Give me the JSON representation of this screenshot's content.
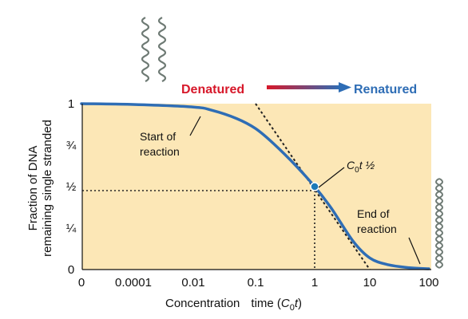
{
  "chart_data": {
    "type": "line",
    "x_scale": "log",
    "x_ticks": [
      "0",
      "0.0001",
      "0.01",
      "0.1",
      "1",
      "10",
      "100"
    ],
    "y_ticks": [
      "0",
      "¼",
      "½",
      "¾",
      "1"
    ],
    "ylabel_line1": "Fraction of DNA",
    "ylabel_line2": "remaining single stranded",
    "xlabel_main": "Concentration",
    "xlabel_time": "time (",
    "xlabel_c": "C",
    "xlabel_sub": "0",
    "xlabel_t": "t",
    "xlabel_close": ")",
    "series": [
      {
        "x": [
          "0",
          0.0001,
          0.01,
          0.02,
          0.05,
          0.1,
          0.2,
          0.5,
          1,
          2,
          5,
          10,
          20,
          50,
          100
        ],
        "y": [
          1.0,
          0.995,
          0.98,
          0.96,
          0.91,
          0.85,
          0.76,
          0.62,
          0.5,
          0.37,
          0.17,
          0.07,
          0.03,
          0.01,
          0.005
        ]
      }
    ],
    "half_point": {
      "x": 1,
      "y": 0.5
    },
    "tangent": {
      "from": {
        "x": 0.1,
        "y": 1.0
      },
      "to": {
        "x": 10,
        "y": 0.0
      }
    },
    "colors": {
      "background": "#FCE7B6",
      "curve": "#2E6DB5",
      "denatured": "#D7182A",
      "renatured": "#2E6DB5",
      "helix": "#6E7A74"
    }
  },
  "annotations": {
    "start_line1": "Start of",
    "start_line2": "reaction",
    "end_line1": "End of",
    "end_line2": "reaction",
    "c0t_c": "C",
    "c0t_sub": "0",
    "c0t_rest": "t ½"
  },
  "states": {
    "denatured": "Denatured",
    "renatured": "Renatured"
  }
}
